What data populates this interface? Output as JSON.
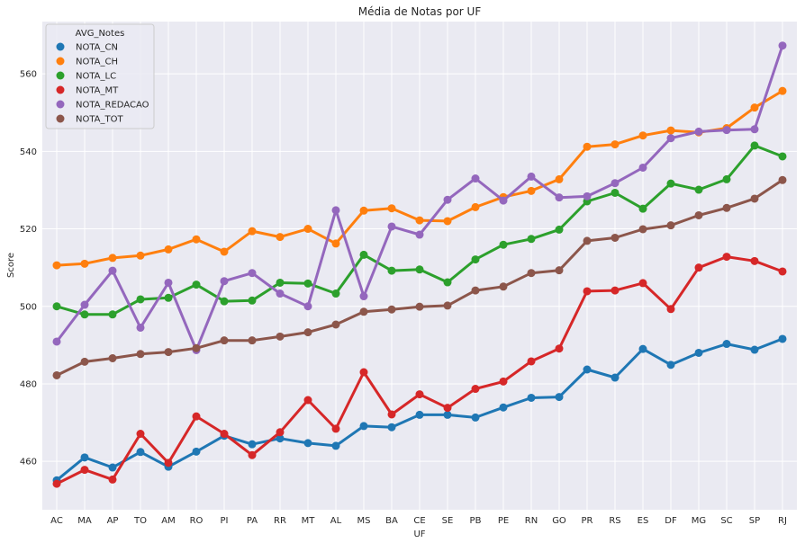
{
  "chart_data": {
    "type": "line",
    "title": "Média de Notas por UF",
    "xlabel": "UF",
    "ylabel": "Score",
    "ylim": [
      447.5,
      573.5
    ],
    "yticks": [
      460,
      480,
      500,
      520,
      540,
      560
    ],
    "grid": true,
    "legend_title": "AVG_Notes",
    "legend_position": "top-left",
    "categories": [
      "AC",
      "MA",
      "AP",
      "TO",
      "AM",
      "RO",
      "PI",
      "PA",
      "RR",
      "MT",
      "AL",
      "MS",
      "BA",
      "CE",
      "SE",
      "PB",
      "PE",
      "RN",
      "GO",
      "PR",
      "RS",
      "ES",
      "DF",
      "MG",
      "SC",
      "SP",
      "RJ"
    ],
    "series": [
      {
        "name": "NOTA_CN",
        "color": "#1f77b4",
        "values": [
          455.1,
          461.0,
          458.4,
          462.4,
          458.6,
          462.5,
          466.6,
          464.4,
          465.9,
          464.7,
          464.0,
          469.1,
          468.8,
          472.0,
          472.0,
          471.3,
          473.9,
          476.4,
          476.6,
          483.7,
          481.6,
          489.0,
          484.9,
          488.0,
          490.3,
          488.8,
          491.6
        ]
      },
      {
        "name": "NOTA_CH",
        "color": "#ff7f0e",
        "values": [
          510.6,
          511.0,
          512.5,
          513.1,
          514.7,
          517.3,
          514.1,
          519.4,
          517.9,
          520.0,
          516.2,
          524.7,
          525.3,
          522.2,
          522.0,
          525.6,
          528.2,
          529.8,
          532.8,
          541.2,
          541.8,
          544.1,
          545.4,
          544.9,
          546.0,
          551.3,
          555.6
        ]
      },
      {
        "name": "NOTA_LC",
        "color": "#2ca02c",
        "values": [
          500.0,
          497.9,
          497.9,
          501.8,
          502.2,
          505.6,
          501.3,
          501.5,
          506.1,
          505.9,
          503.3,
          513.3,
          509.2,
          509.5,
          506.2,
          512.1,
          515.9,
          517.4,
          519.8,
          527.1,
          529.3,
          525.2,
          531.7,
          530.1,
          532.8,
          541.5,
          538.7
        ]
      },
      {
        "name": "NOTA_MT",
        "color": "#d62728",
        "values": [
          454.2,
          457.8,
          455.3,
          467.1,
          459.6,
          471.6,
          467.1,
          461.6,
          467.5,
          475.8,
          468.4,
          483.0,
          472.1,
          477.3,
          473.8,
          478.7,
          480.6,
          485.8,
          489.1,
          503.9,
          504.1,
          506.0,
          499.3,
          510.0,
          512.8,
          511.7,
          509.0
        ]
      },
      {
        "name": "NOTA_REDACAO",
        "color": "#9467bd",
        "values": [
          490.9,
          500.4,
          509.2,
          494.5,
          506.1,
          488.7,
          506.5,
          508.6,
          503.3,
          500.0,
          524.8,
          502.6,
          520.6,
          518.5,
          527.5,
          533.0,
          527.3,
          533.5,
          528.1,
          528.4,
          531.8,
          535.8,
          543.4,
          545.1,
          545.5,
          545.7,
          567.3
        ]
      },
      {
        "name": "NOTA_TOT",
        "color": "#8c564b",
        "values": [
          482.2,
          485.7,
          486.6,
          487.7,
          488.2,
          489.2,
          491.2,
          491.2,
          492.2,
          493.3,
          495.3,
          498.6,
          499.2,
          499.9,
          500.2,
          504.1,
          505.1,
          508.6,
          509.3,
          516.9,
          517.7,
          519.9,
          520.9,
          523.5,
          525.4,
          527.8,
          532.6
        ]
      }
    ]
  }
}
